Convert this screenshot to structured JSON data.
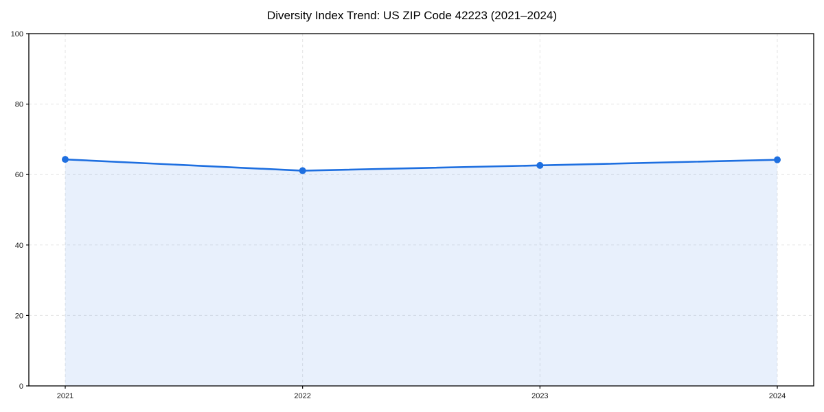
{
  "chart_data": {
    "type": "area",
    "title": "Diversity Index Trend: US ZIP Code 42223 (2021–2024)",
    "categories": [
      "2021",
      "2022",
      "2023",
      "2024"
    ],
    "series": [
      {
        "name": "Diversity Index",
        "values": [
          64.3,
          61.1,
          62.6,
          64.2
        ]
      }
    ],
    "xlabel": "",
    "ylabel": "",
    "ylim": [
      0,
      100
    ],
    "y_ticks": [
      0,
      20,
      40,
      60,
      80,
      100
    ],
    "grid": {
      "visible": true,
      "style": "dashed",
      "color": "#e3e3e3"
    },
    "legend": {
      "visible": false
    },
    "colors": {
      "line": "#1e6fe0",
      "marker": "#1e6fe0",
      "fill": "#1e6fe0",
      "fill_opacity": 0.1,
      "spine": "#000000",
      "tick_label": "#1a1a1a",
      "background": "#ffffff"
    }
  }
}
